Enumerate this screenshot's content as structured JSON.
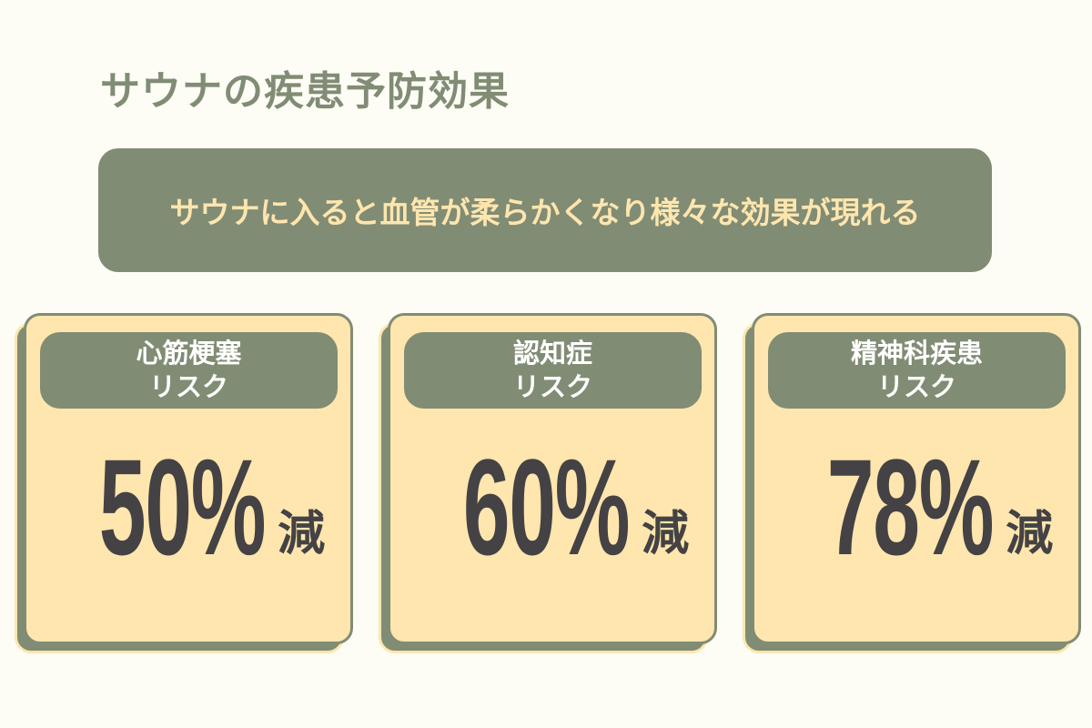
{
  "title": "サウナの疾患予防効果",
  "banner": "サウナに入ると血管が柔らかくなり様々な効果が現れる",
  "cards": [
    {
      "label_line1": "心筋梗塞",
      "label_line2": "リスク",
      "value": "50%",
      "unit": "減"
    },
    {
      "label_line1": "認知症",
      "label_line2": "リスク",
      "value": "60%",
      "unit": "減"
    },
    {
      "label_line1": "精神科疾患",
      "label_line2": "リスク",
      "value": "78%",
      "unit": "減"
    }
  ],
  "colors": {
    "background": "#fdfdf6",
    "green": "#818c74",
    "yellow": "#fee6ae",
    "text_dark": "#444244"
  }
}
